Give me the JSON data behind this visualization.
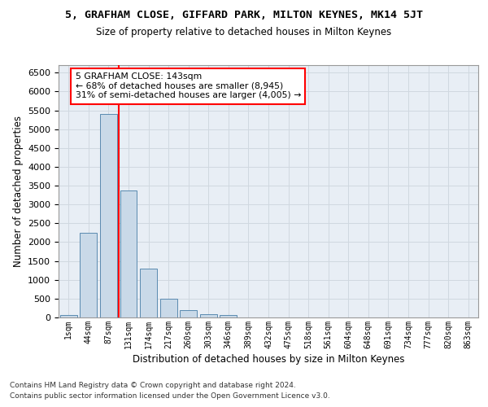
{
  "title1": "5, GRAFHAM CLOSE, GIFFARD PARK, MILTON KEYNES, MK14 5JT",
  "title2": "Size of property relative to detached houses in Milton Keynes",
  "xlabel": "Distribution of detached houses by size in Milton Keynes",
  "ylabel": "Number of detached properties",
  "footnote1": "Contains HM Land Registry data © Crown copyright and database right 2024.",
  "footnote2": "Contains public sector information licensed under the Open Government Licence v3.0.",
  "bar_labels": [
    "1sqm",
    "44sqm",
    "87sqm",
    "131sqm",
    "174sqm",
    "217sqm",
    "260sqm",
    "303sqm",
    "346sqm",
    "389sqm",
    "432sqm",
    "475sqm",
    "518sqm",
    "561sqm",
    "604sqm",
    "648sqm",
    "691sqm",
    "734sqm",
    "777sqm",
    "820sqm",
    "863sqm"
  ],
  "bar_values": [
    75,
    2250,
    5400,
    3380,
    1290,
    490,
    195,
    95,
    55,
    0,
    0,
    0,
    0,
    0,
    0,
    0,
    0,
    0,
    0,
    0,
    0
  ],
  "bar_color": "#c9d9e8",
  "bar_edge_color": "#5a8ab0",
  "grid_color": "#d0d8e0",
  "background_color": "#e8eef5",
  "vline_color": "red",
  "vline_pos": 2.5,
  "annotation_text": "5 GRAFHAM CLOSE: 143sqm\n← 68% of detached houses are smaller (8,945)\n31% of semi-detached houses are larger (4,005) →",
  "annotation_box_color": "white",
  "annotation_box_edge": "red",
  "ylim": [
    0,
    6700
  ],
  "yticks": [
    0,
    500,
    1000,
    1500,
    2000,
    2500,
    3000,
    3500,
    4000,
    4500,
    5000,
    5500,
    6000,
    6500
  ]
}
